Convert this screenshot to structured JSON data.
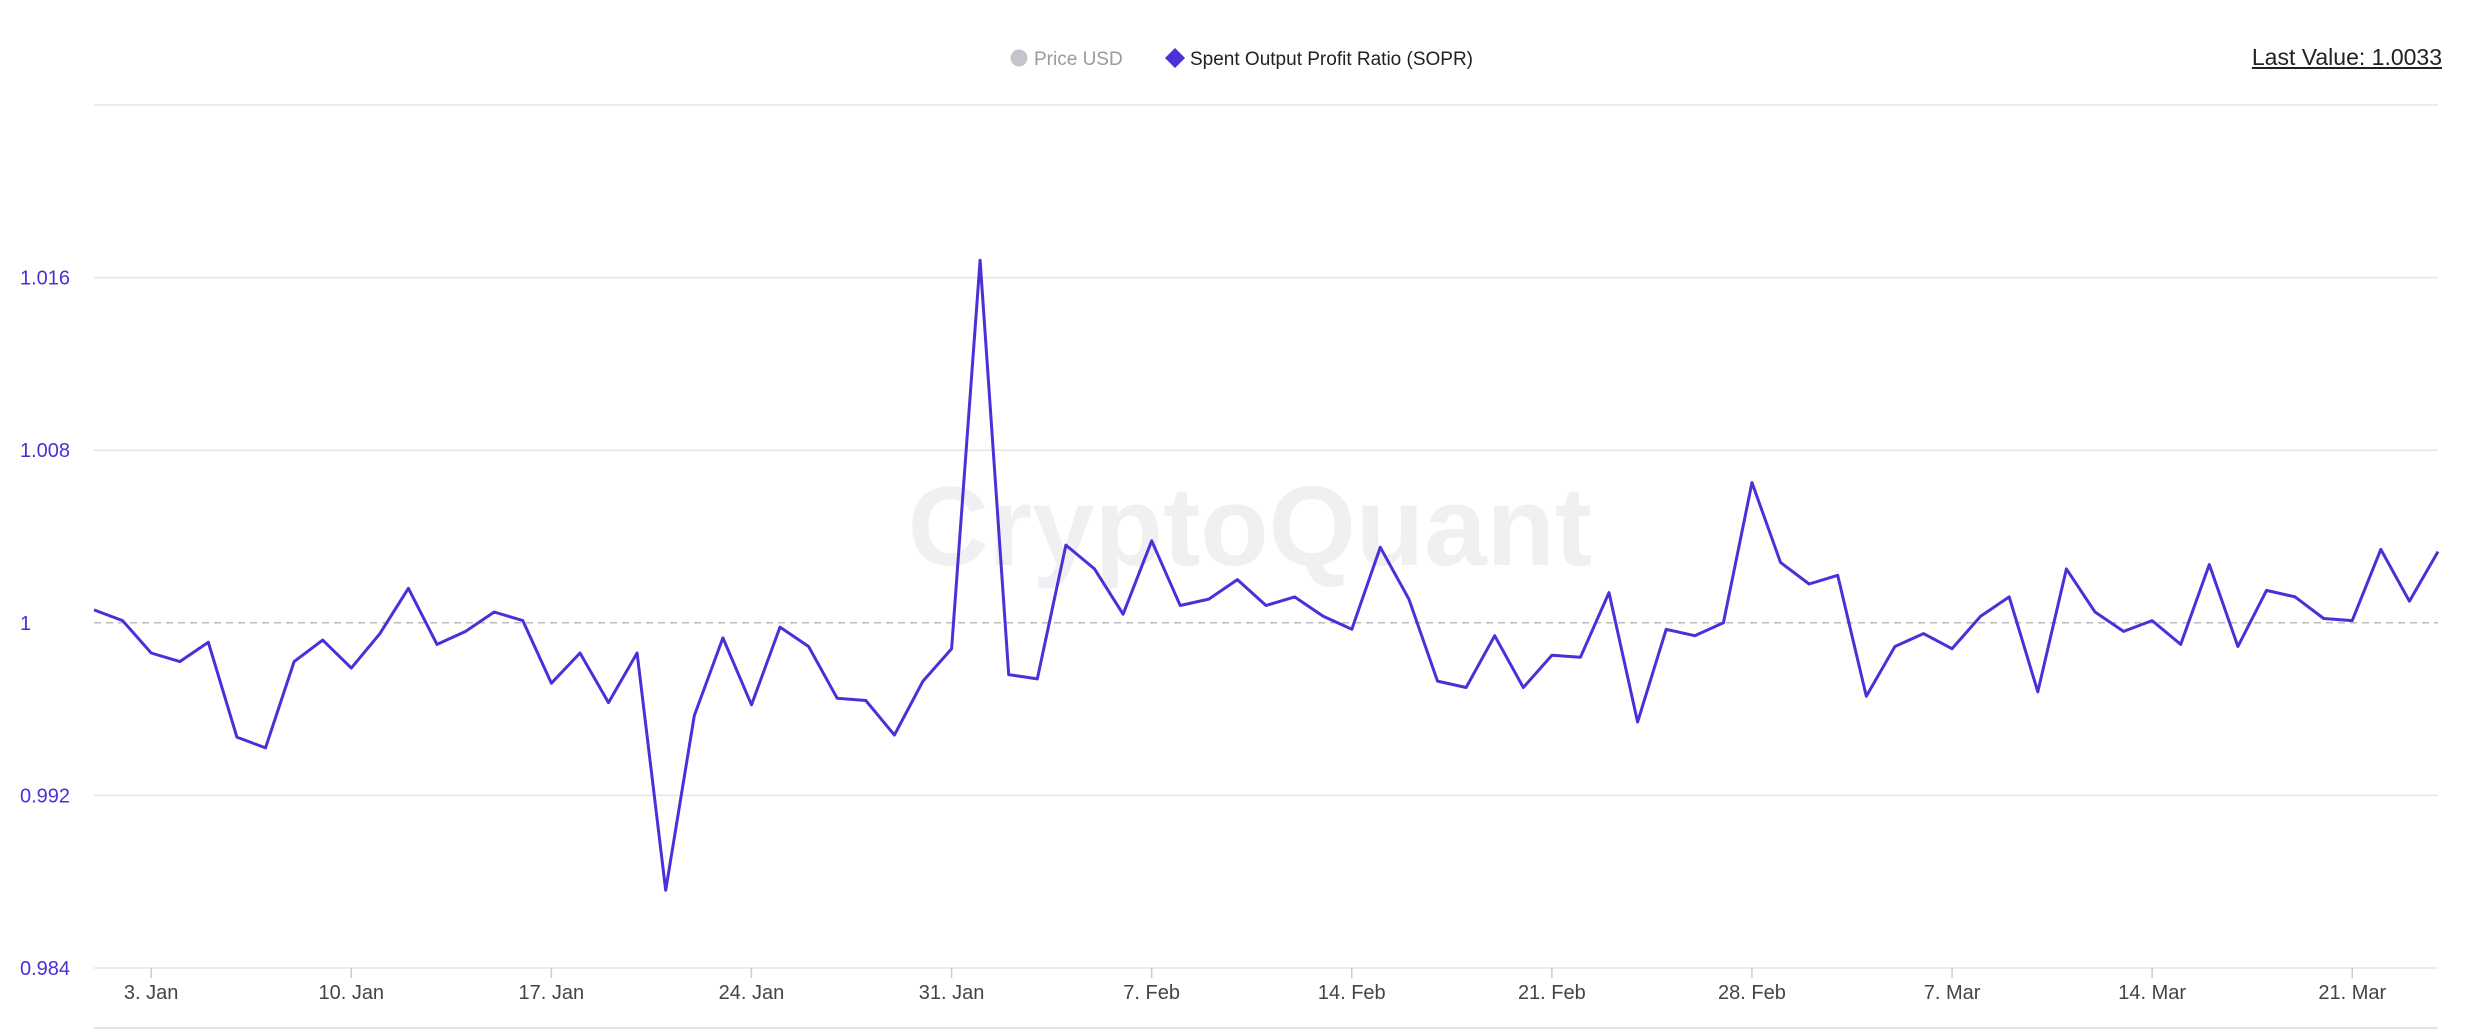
{
  "legend": [
    {
      "label": "Price USD",
      "active": false,
      "color": "#c4c4cc",
      "marker": "circle"
    },
    {
      "label": "Spent Output Profit Ratio (SOPR)",
      "active": true,
      "color": "#4a30d8",
      "marker": "diamond"
    }
  ],
  "last_value_label": "Last Value: 1.0033",
  "watermark": "CryptoQuant",
  "colors": {
    "line": "#4a30d8",
    "grid": "#e5e5e5",
    "reference": "#bbbbbb",
    "ytick": "#4a30d8"
  },
  "chart_data": {
    "type": "line",
    "series": [
      {
        "name": "Spent Output Profit Ratio (SOPR)",
        "x": [
          "2022-01-01",
          "2022-01-02",
          "2022-01-03",
          "2022-01-04",
          "2022-01-05",
          "2022-01-06",
          "2022-01-07",
          "2022-01-08",
          "2022-01-09",
          "2022-01-10",
          "2022-01-11",
          "2022-01-12",
          "2022-01-13",
          "2022-01-14",
          "2022-01-15",
          "2022-01-16",
          "2022-01-17",
          "2022-01-18",
          "2022-01-19",
          "2022-01-20",
          "2022-01-21",
          "2022-01-22",
          "2022-01-23",
          "2022-01-24",
          "2022-01-25",
          "2022-01-26",
          "2022-01-27",
          "2022-01-28",
          "2022-01-29",
          "2022-01-30",
          "2022-01-31",
          "2022-02-01",
          "2022-02-02",
          "2022-02-03",
          "2022-02-04",
          "2022-02-05",
          "2022-02-06",
          "2022-02-07",
          "2022-02-08",
          "2022-02-09",
          "2022-02-10",
          "2022-02-11",
          "2022-02-12",
          "2022-02-13",
          "2022-02-14",
          "2022-02-15",
          "2022-02-16",
          "2022-02-17",
          "2022-02-18",
          "2022-02-19",
          "2022-02-20",
          "2022-02-21",
          "2022-02-22",
          "2022-02-23",
          "2022-02-24",
          "2022-02-25",
          "2022-02-26",
          "2022-02-27",
          "2022-02-28",
          "2022-03-01",
          "2022-03-02",
          "2022-03-03",
          "2022-03-04",
          "2022-03-05",
          "2022-03-06",
          "2022-03-07",
          "2022-03-08",
          "2022-03-09",
          "2022-03-10",
          "2022-03-11",
          "2022-03-12",
          "2022-03-13",
          "2022-03-14",
          "2022-03-15",
          "2022-03-16",
          "2022-03-17",
          "2022-03-18",
          "2022-03-19",
          "2022-03-20",
          "2022-03-21",
          "2022-03-22",
          "2022-03-23",
          "2022-03-24"
        ],
        "values": [
          1.0006,
          1.0001,
          0.9986,
          0.9982,
          0.9991,
          0.9947,
          0.9942,
          0.9982,
          0.9992,
          0.9979,
          0.9995,
          1.0016,
          0.999,
          0.9996,
          1.0005,
          1.0001,
          0.9972,
          0.9986,
          0.9963,
          0.9986,
          0.9876,
          0.9957,
          0.9993,
          0.9962,
          0.9998,
          0.9989,
          0.9965,
          0.9964,
          0.9948,
          0.9973,
          0.9988,
          1.0168,
          0.9976,
          0.9974,
          1.0036,
          1.0025,
          1.0004,
          1.0038,
          1.0008,
          1.0011,
          1.002,
          1.0008,
          1.0012,
          1.0003,
          0.9997,
          1.0035,
          1.0011,
          0.9973,
          0.997,
          0.9994,
          0.997,
          0.9985,
          0.9984,
          1.0014,
          0.9954,
          0.9997,
          0.9994,
          1.0,
          1.0065,
          1.0028,
          1.0018,
          1.0022,
          0.9966,
          0.9989,
          0.9995,
          0.9988,
          1.0003,
          1.0012,
          0.9968,
          1.0025,
          1.0005,
          0.9996,
          1.0001,
          0.999,
          1.0027,
          0.9989,
          1.0015,
          1.0012,
          1.0002,
          1.0001,
          1.0034,
          1.001,
          1.0033
        ]
      }
    ],
    "x_ticks": [
      {
        "label": "3. Jan",
        "date": "2022-01-03"
      },
      {
        "label": "10. Jan",
        "date": "2022-01-10"
      },
      {
        "label": "17. Jan",
        "date": "2022-01-17"
      },
      {
        "label": "24. Jan",
        "date": "2022-01-24"
      },
      {
        "label": "31. Jan",
        "date": "2022-01-31"
      },
      {
        "label": "7. Feb",
        "date": "2022-02-07"
      },
      {
        "label": "14. Feb",
        "date": "2022-02-14"
      },
      {
        "label": "21. Feb",
        "date": "2022-02-21"
      },
      {
        "label": "28. Feb",
        "date": "2022-02-28"
      },
      {
        "label": "7. Mar",
        "date": "2022-03-07"
      },
      {
        "label": "14. Mar",
        "date": "2022-03-14"
      },
      {
        "label": "21. Mar",
        "date": "2022-03-21"
      }
    ],
    "y_ticks": [
      {
        "label": "1.016",
        "value": 1.016
      },
      {
        "label": "1.008",
        "value": 1.008
      },
      {
        "label": "1",
        "value": 1.0
      },
      {
        "label": "0.992",
        "value": 0.992
      },
      {
        "label": "0.984",
        "value": 0.984
      }
    ],
    "ylim": [
      0.984,
      1.024
    ],
    "xlim": [
      "2022-01-01",
      "2022-03-24"
    ],
    "reference_line": 1.0,
    "grid": true,
    "legend_position": "top-center"
  }
}
